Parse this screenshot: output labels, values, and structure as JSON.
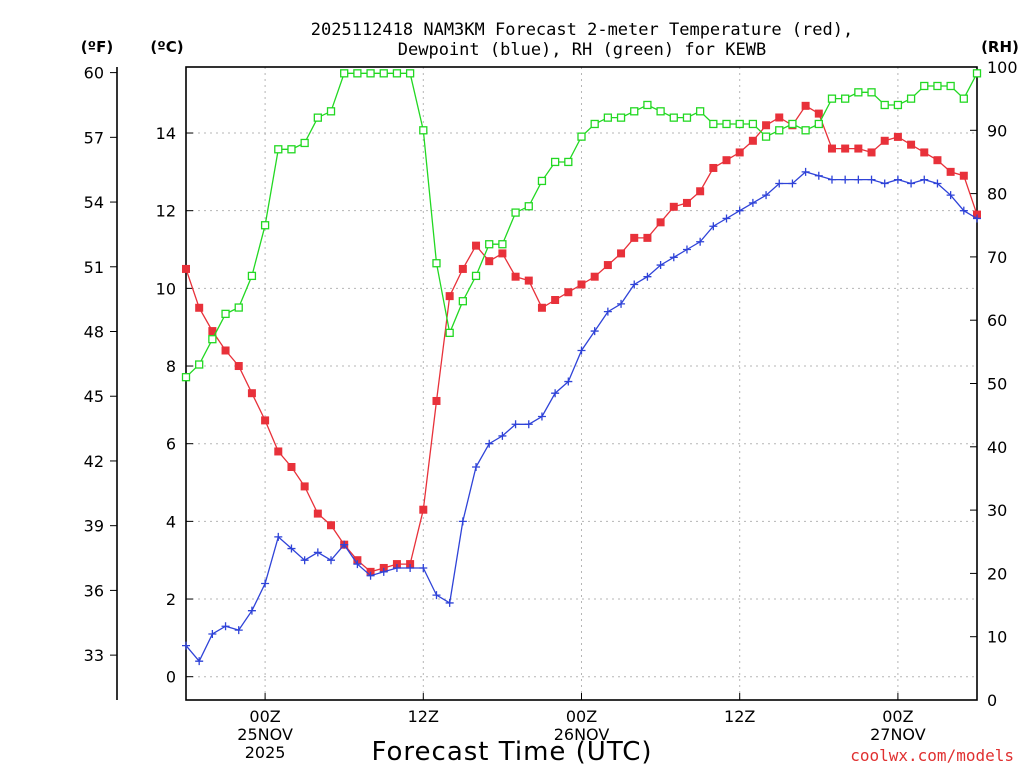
{
  "chart_data": {
    "type": "line",
    "title_lines": [
      "2025112418 NAM3KM Forecast 2-meter Temperature (red),",
      "Dewpoint (blue), RH (green) for KEWB"
    ],
    "xlabel": "Forecast Time (UTC)",
    "credit": "coolwx.com/models",
    "units": {
      "f": "(ºF)",
      "c": "(ºC)",
      "rh": "(RH)"
    },
    "x_unit": "forecast hour",
    "x_range": [
      0,
      60
    ],
    "x_ticks": [
      {
        "hour": 6,
        "lines": [
          "00Z",
          "25NOV",
          "2025"
        ]
      },
      {
        "hour": 18,
        "lines": [
          "12Z"
        ]
      },
      {
        "hour": 30,
        "lines": [
          "00Z",
          "26NOV"
        ]
      },
      {
        "hour": 42,
        "lines": [
          "12Z"
        ]
      },
      {
        "hour": 54,
        "lines": [
          "00Z",
          "27NOV"
        ]
      }
    ],
    "celsius_axis": {
      "range": [
        -0.6,
        15.7
      ],
      "ticks": [
        0,
        2,
        4,
        6,
        8,
        10,
        12,
        14
      ]
    },
    "fahrenheit_ticks": [
      "33",
      "36",
      "39",
      "42",
      "45",
      "48",
      "51",
      "54",
      "57",
      "60"
    ],
    "rh_axis": {
      "range": [
        0,
        100
      ],
      "ticks": [
        0,
        10,
        20,
        30,
        40,
        50,
        60,
        70,
        80,
        90,
        100
      ]
    },
    "series": [
      {
        "name": "Temperature",
        "color": "#e8313a",
        "marker": "filled-square",
        "axis": "celsius",
        "values": [
          10.5,
          9.5,
          8.9,
          8.4,
          8.0,
          7.3,
          6.6,
          5.8,
          5.4,
          4.9,
          4.2,
          3.9,
          3.4,
          3.0,
          2.7,
          2.8,
          2.9,
          2.9,
          4.3,
          7.1,
          9.8,
          10.5,
          11.1,
          10.7,
          10.9,
          10.3,
          10.2,
          9.5,
          9.7,
          9.9,
          10.1,
          10.3,
          10.6,
          10.9,
          11.3,
          11.3,
          11.7,
          12.1,
          12.2,
          12.5,
          13.1,
          13.3,
          13.5,
          13.8,
          14.2,
          14.4,
          14.2,
          14.7,
          14.5,
          13.6,
          13.6,
          13.6,
          13.5,
          13.8,
          13.9,
          13.7,
          13.5,
          13.3,
          13.0,
          12.9,
          11.9
        ]
      },
      {
        "name": "Dewpoint",
        "color": "#2f43d8",
        "marker": "plus",
        "axis": "celsius",
        "values": [
          0.8,
          0.4,
          1.1,
          1.3,
          1.2,
          1.7,
          2.4,
          3.6,
          3.3,
          3.0,
          3.2,
          3.0,
          3.4,
          2.9,
          2.6,
          2.7,
          2.8,
          2.8,
          2.8,
          2.1,
          1.9,
          4.0,
          5.4,
          6.0,
          6.2,
          6.5,
          6.5,
          6.7,
          7.3,
          7.6,
          8.4,
          8.9,
          9.4,
          9.6,
          10.1,
          10.3,
          10.6,
          10.8,
          11.0,
          11.2,
          11.6,
          11.8,
          12.0,
          12.2,
          12.4,
          12.7,
          12.7,
          13.0,
          12.9,
          12.8,
          12.8,
          12.8,
          12.8,
          12.7,
          12.8,
          12.7,
          12.8,
          12.7,
          12.4,
          12.0,
          11.8
        ]
      },
      {
        "name": "RH",
        "color": "#22d822",
        "marker": "open-square",
        "axis": "rh",
        "values": [
          51,
          53,
          57,
          61,
          62,
          67,
          75,
          87,
          87,
          88,
          92,
          93,
          99,
          99,
          99,
          99,
          99,
          99,
          90,
          69,
          58,
          63,
          67,
          72,
          72,
          77,
          78,
          82,
          85,
          85,
          89,
          91,
          92,
          92,
          93,
          94,
          93,
          92,
          92,
          93,
          91,
          91,
          91,
          91,
          89,
          90,
          91,
          90,
          91,
          95,
          95,
          96,
          96,
          94,
          94,
          95,
          97,
          97,
          97,
          95,
          99
        ]
      }
    ]
  }
}
